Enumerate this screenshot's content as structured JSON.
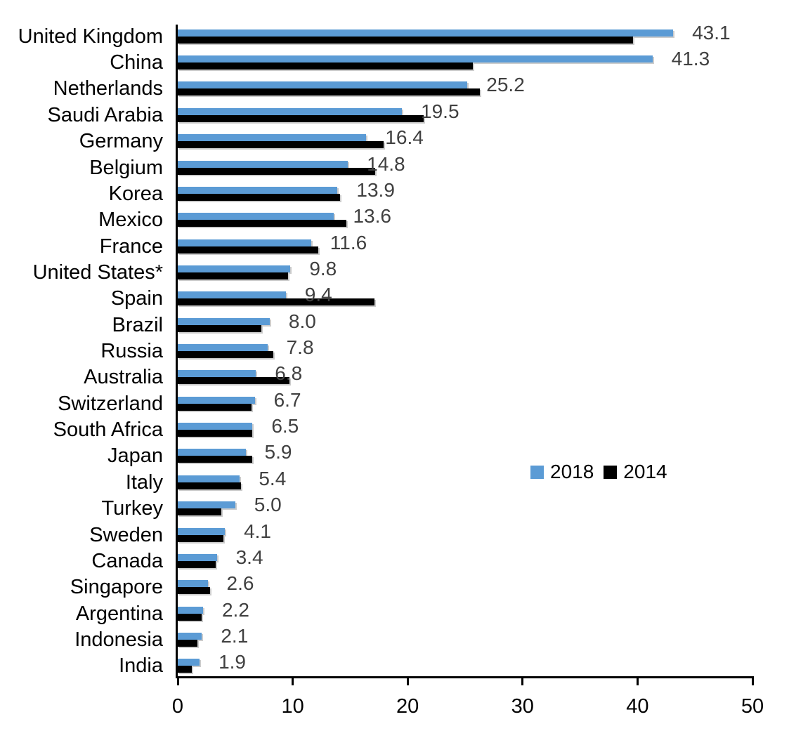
{
  "chart_data": {
    "type": "bar",
    "orientation": "horizontal",
    "title": "",
    "xlabel": "",
    "ylabel": "",
    "xlim": [
      0,
      50
    ],
    "x_ticks": [
      "0",
      "10",
      "20",
      "30",
      "40",
      "50"
    ],
    "grid": false,
    "legend_position": "middle-right",
    "categories": [
      "United Kingdom",
      "China",
      "Netherlands",
      "Saudi Arabia",
      "Germany",
      "Belgium",
      "Korea",
      "Mexico",
      "France",
      "United States*",
      "Spain",
      "Brazil",
      "Russia",
      "Australia",
      "Switzerland",
      "South Africa",
      "Japan",
      "Italy",
      "Turkey",
      "Sweden",
      "Canada",
      "Singapore",
      "Argentina",
      "Indonesia",
      "India"
    ],
    "series": [
      {
        "name": "2018",
        "color": "#5B9BD5",
        "values": [
          43.1,
          41.3,
          25.2,
          19.5,
          16.4,
          14.8,
          13.9,
          13.6,
          11.6,
          9.8,
          9.4,
          8.0,
          7.8,
          6.8,
          6.7,
          6.5,
          5.9,
          5.4,
          5.0,
          4.1,
          3.4,
          2.6,
          2.2,
          2.1,
          1.9
        ]
      },
      {
        "name": "2014",
        "color": "#000000",
        "values": [
          39.6,
          25.7,
          26.3,
          21.4,
          17.9,
          17.2,
          14.1,
          14.7,
          12.2,
          9.6,
          17.1,
          7.3,
          8.3,
          9.7,
          6.4,
          6.5,
          6.5,
          5.5,
          3.8,
          4.0,
          3.3,
          2.8,
          2.1,
          1.7,
          1.2
        ]
      }
    ],
    "data_labels": {
      "series": "2018",
      "values": [
        "43.1",
        "41.3",
        "25.2",
        "19.5",
        "16.4",
        "14.8",
        "13.9",
        "13.6",
        "11.6",
        "9.8",
        "9.4",
        "8.0",
        "7.8",
        "6.8",
        "6.7",
        "6.5",
        "5.9",
        "5.4",
        "5.0",
        "4.1",
        "3.4",
        "2.6",
        "2.2",
        "2.1",
        "1.9"
      ]
    }
  },
  "colors": {
    "bar_2018": "#5B9BD5",
    "bar_2014": "#000000",
    "data_label": "#404040",
    "axis": "#000000",
    "background": "#ffffff"
  }
}
